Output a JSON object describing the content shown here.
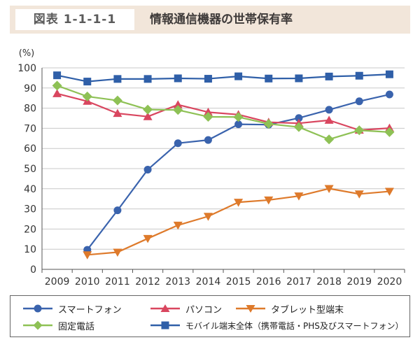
{
  "header": {
    "fig_label": "図表 1-1-1-1",
    "title": "情報通信機器の世帯保有率"
  },
  "chart_data": {
    "type": "line",
    "ylabel": "(%)",
    "ylim": [
      0,
      100
    ],
    "yticks": [
      0,
      10,
      20,
      30,
      40,
      50,
      60,
      70,
      80,
      90,
      100
    ],
    "grid": true,
    "categories": [
      "2009",
      "2010",
      "2011",
      "2012",
      "2013",
      "2014",
      "2015",
      "2016",
      "2017",
      "2018",
      "2019",
      "2020"
    ],
    "series": [
      {
        "name": "スマートフォン",
        "color": "#3a63ad",
        "marker": "circle",
        "values": [
          null,
          9.7,
          29.3,
          49.5,
          62.6,
          64.2,
          72.0,
          71.8,
          75.1,
          79.2,
          83.4,
          86.8
        ]
      },
      {
        "name": "パソコン",
        "color": "#d9465f",
        "marker": "triangle-up",
        "values": [
          87.2,
          83.4,
          77.4,
          75.8,
          81.7,
          78.0,
          76.8,
          73.0,
          72.5,
          74.0,
          69.1,
          70.1
        ]
      },
      {
        "name": "タブレット型端末",
        "color": "#de7a2b",
        "marker": "triangle-down",
        "values": [
          null,
          7.2,
          8.5,
          15.3,
          21.9,
          26.3,
          33.3,
          34.4,
          36.4,
          40.1,
          37.4,
          38.7
        ]
      },
      {
        "name": "固定電話",
        "color": "#8ec155",
        "marker": "diamond",
        "values": [
          91.2,
          85.8,
          83.8,
          79.3,
          79.1,
          75.7,
          75.6,
          72.2,
          70.6,
          64.5,
          69.0,
          68.1
        ]
      },
      {
        "name": "モバイル端末全体（携帯電話・PHS及びスマートフォン）",
        "color": "#2f5fa8",
        "marker": "square",
        "values": [
          96.3,
          93.2,
          94.5,
          94.5,
          94.8,
          94.6,
          95.8,
          94.7,
          94.8,
          95.7,
          96.1,
          96.8
        ]
      }
    ]
  },
  "legend": {
    "items": [
      {
        "label": "スマートフォン"
      },
      {
        "label": "パソコン"
      },
      {
        "label": "タブレット型端末"
      },
      {
        "label": "固定電話"
      },
      {
        "label": "モバイル端末全体（携帯電話・PHS及びスマートフォン）"
      }
    ]
  }
}
